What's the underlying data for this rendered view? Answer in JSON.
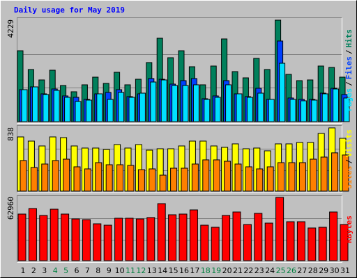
{
  "chart_data": [
    {
      "type": "bar",
      "title": "Daily usage for May 2019",
      "ylim": [
        0,
        4229
      ],
      "yticks": [
        4229
      ],
      "grid": true,
      "legend_separator": "/",
      "series": [
        {
          "name": "Hits",
          "color": "#00805c",
          "values": [
            2955,
            2173,
            1738,
            2144,
            1506,
            1246,
            1535,
            1854,
            1593,
            2057,
            1535,
            1767,
            2462,
            3476,
            2665,
            2955,
            2289,
            1535,
            2318,
            3447,
            2086,
            1825,
            2636,
            2173,
            4229,
            1970,
            1709,
            1738,
            2318,
            2260,
            1854
          ]
        },
        {
          "name": "Files",
          "color": "#0040ff",
          "values": [
            1333,
            1449,
            1159,
            1362,
            1072,
            1014,
            927,
            1159,
            1217,
            1333,
            1043,
            1159,
            1796,
            1767,
            1564,
            1709,
            1796,
            956,
            1072,
            1709,
            1159,
            1043,
            1391,
            927,
            3360,
            985,
            927,
            927,
            1188,
            1391,
            1130
          ]
        },
        {
          "name": "Pages",
          "color": "#00e0ff",
          "values": [
            1333,
            1449,
            1130,
            1304,
            1014,
            840,
            898,
            1159,
            927,
            1217,
            1014,
            1188,
            1651,
            1738,
            1506,
            1506,
            1535,
            927,
            1014,
            1535,
            1159,
            1014,
            1188,
            927,
            2433,
            927,
            869,
            898,
            1159,
            1362,
            985
          ]
        }
      ]
    },
    {
      "type": "bar",
      "ylim": [
        0,
        838
      ],
      "yticks": [
        838
      ],
      "grid": true,
      "legend_separator": "/",
      "series": [
        {
          "name": "Visits",
          "color": "#ffff00",
          "values": [
            718,
            663,
            599,
            718,
            709,
            599,
            571,
            571,
            552,
            617,
            571,
            617,
            543,
            562,
            562,
            599,
            663,
            663,
            599,
            580,
            626,
            562,
            571,
            534,
            626,
            626,
            645,
            645,
            764,
            838,
            700
          ]
        },
        {
          "name": "Sites",
          "color": "#ff8000",
          "values": [
            405,
            313,
            359,
            405,
            424,
            322,
            295,
            378,
            350,
            350,
            341,
            285,
            295,
            212,
            304,
            304,
            359,
            414,
            414,
            396,
            359,
            322,
            295,
            322,
            378,
            378,
            378,
            424,
            451,
            507,
            479
          ]
        }
      ]
    },
    {
      "type": "bar",
      "ylim": [
        0,
        62960
      ],
      "yticks": [
        62960
      ],
      "grid": true,
      "series": [
        {
          "name": "KBytes",
          "color": "#ff0000",
          "values": [
            46357,
            51890,
            44973,
            51198,
            46357,
            41513,
            40821,
            36670,
            35286,
            42205,
            42205,
            41513,
            42897,
            56734,
            45665,
            46357,
            50506,
            35286,
            33210,
            44973,
            48432,
            35978,
            47049,
            37362,
            62960,
            38746,
            38746,
            32518,
            33210,
            48432,
            35978
          ]
        }
      ],
      "categories": [
        1,
        2,
        3,
        4,
        5,
        6,
        7,
        8,
        9,
        10,
        11,
        12,
        13,
        14,
        15,
        16,
        17,
        18,
        19,
        20,
        21,
        22,
        23,
        24,
        25,
        26,
        27,
        28,
        29,
        30,
        31
      ],
      "highlight_categories": [
        4,
        5,
        11,
        12,
        18,
        19,
        25,
        26
      ],
      "highlight_color": "#008040"
    }
  ]
}
